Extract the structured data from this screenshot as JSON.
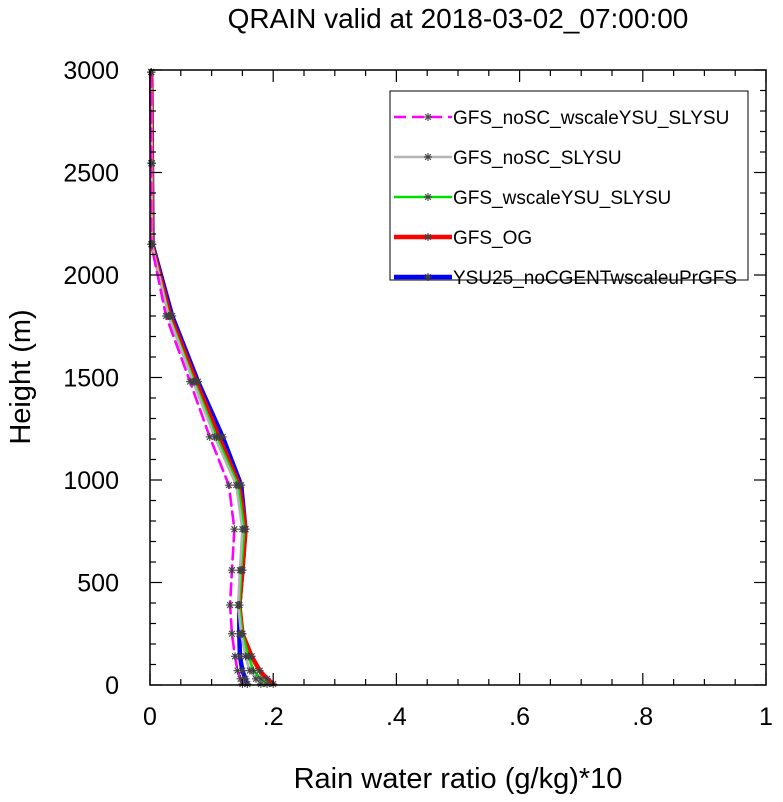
{
  "chart_data": {
    "type": "line",
    "title": "QRAIN valid at 2018-03-02_07:00:00",
    "xlabel": "Rain water ratio (g/kg)*10",
    "ylabel": "Height (m)",
    "xlim": [
      0,
      1
    ],
    "ylim": [
      0,
      3000
    ],
    "x_ticks": [
      0,
      0.2,
      0.4,
      0.6,
      0.8,
      1
    ],
    "x_tick_labels": [
      "0",
      ".2",
      ".4",
      ".6",
      ".8",
      "1"
    ],
    "y_ticks": [
      0,
      500,
      1000,
      1500,
      2000,
      2500,
      3000
    ],
    "y_tick_labels": [
      "0",
      "500",
      "1000",
      "1500",
      "2000",
      "2500",
      "3000"
    ],
    "grid": false,
    "legend_position": "top-right",
    "y": [
      5,
      30,
      70,
      140,
      250,
      390,
      560,
      760,
      975,
      1210,
      1480,
      1800,
      2150,
      2545,
      2990
    ],
    "series": [
      {
        "name": "YSU25_noCGENTwscaleuPrGFS",
        "color": "#0000ff",
        "dash": "solid",
        "width": "thick",
        "values": [
          0.158,
          0.155,
          0.15,
          0.146,
          0.145,
          0.145,
          0.15,
          0.155,
          0.148,
          0.118,
          0.078,
          0.036,
          0.004,
          0.003,
          0.002
        ]
      },
      {
        "name": "GFS_OG",
        "color": "#ff0000",
        "dash": "solid",
        "width": "thick",
        "values": [
          0.2,
          0.19,
          0.178,
          0.165,
          0.15,
          0.145,
          0.15,
          0.155,
          0.145,
          0.112,
          0.075,
          0.033,
          0.003,
          0.003,
          0.002
        ]
      },
      {
        "name": "GFS_wscaleYSU_SLYSU",
        "color": "#00dd00",
        "dash": "solid",
        "width": "medium",
        "values": [
          0.19,
          0.18,
          0.168,
          0.16,
          0.15,
          0.145,
          0.148,
          0.153,
          0.143,
          0.108,
          0.072,
          0.031,
          0.003,
          0.003,
          0.002
        ]
      },
      {
        "name": "GFS_noSC_SLYSU",
        "color": "#b4b4b4",
        "dash": "solid",
        "width": "medium",
        "values": [
          0.18,
          0.172,
          0.162,
          0.155,
          0.148,
          0.143,
          0.146,
          0.15,
          0.14,
          0.105,
          0.07,
          0.03,
          0.003,
          0.003,
          0.002
        ]
      },
      {
        "name": "GFS_noSC_wscaleYSU_SLYSU",
        "color": "#ff00ff",
        "dash": "dashed",
        "width": "medium",
        "values": [
          0.15,
          0.147,
          0.142,
          0.138,
          0.133,
          0.13,
          0.133,
          0.137,
          0.128,
          0.097,
          0.065,
          0.026,
          0.002,
          0.002,
          0.002
        ]
      }
    ],
    "legend_order": [
      "GFS_noSC_wscaleYSU_SLYSU",
      "GFS_noSC_SLYSU",
      "GFS_wscaleYSU_SLYSU",
      "GFS_OG",
      "YSU25_noCGENTwscaleuPrGFS"
    ],
    "marker": "asterisk",
    "marker_color": "#404040"
  }
}
